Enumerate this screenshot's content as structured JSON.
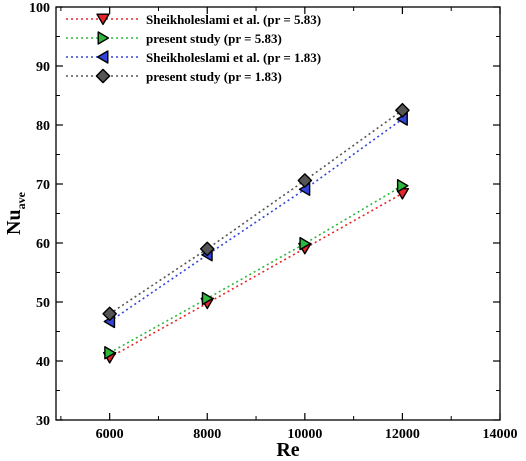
{
  "chart_data": {
    "type": "line",
    "xlabel": "Re",
    "ylabel_main": "Nu",
    "ylabel_sub": "ave",
    "xlim": [
      4900,
      14000
    ],
    "ylim": [
      30,
      100
    ],
    "xticks": [
      6000,
      8000,
      10000,
      12000,
      14000
    ],
    "yticks": [
      30,
      40,
      50,
      60,
      70,
      80,
      90,
      100
    ],
    "legend_position": "top-left",
    "grid": false,
    "series": [
      {
        "name": "Sheikholeslami et al. (pr = 5.83)",
        "marker": "triangle-down",
        "color": "#e8262a",
        "x": [
          6000,
          8000,
          10000,
          12000
        ],
        "y": [
          40.6,
          49.8,
          59.1,
          68.4
        ]
      },
      {
        "name": "present study (pr = 5.83)",
        "marker": "triangle-right",
        "color": "#2db83d",
        "x": [
          6000,
          8000,
          10000,
          12000
        ],
        "y": [
          41.4,
          50.6,
          59.9,
          69.7
        ]
      },
      {
        "name": "Sheikholeslami et al. (pr = 1.83)",
        "marker": "triangle-left",
        "color": "#3344dd",
        "x": [
          6000,
          8000,
          10000,
          12000
        ],
        "y": [
          46.7,
          58.0,
          69.1,
          81.0
        ]
      },
      {
        "name": "present study (pr = 1.83)",
        "marker": "diamond",
        "color": "#555555",
        "x": [
          6000,
          8000,
          10000,
          12000
        ],
        "y": [
          48.0,
          59.0,
          70.6,
          82.5
        ]
      }
    ]
  }
}
